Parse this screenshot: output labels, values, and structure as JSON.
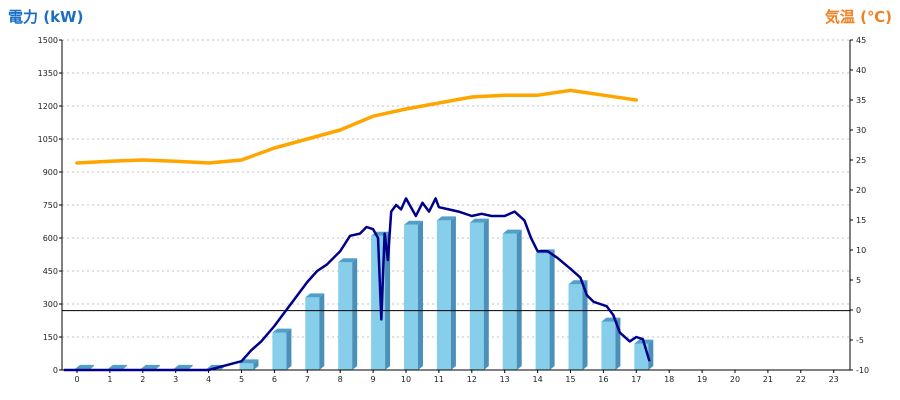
{
  "chart_data": {
    "type": "bar",
    "ylabel_left": "電力 (kW)",
    "ylabel_right": "気温 (℃)",
    "x_ticks": [
      "0",
      "1",
      "2",
      "3",
      "4",
      "5",
      "6",
      "7",
      "8",
      "9",
      "10",
      "11",
      "12",
      "13",
      "14",
      "15",
      "16",
      "17",
      "18",
      "19",
      "20",
      "21",
      "22",
      "23"
    ],
    "y_left_ticks": [
      "0",
      "150",
      "300",
      "450",
      "600",
      "750",
      "900",
      "1050",
      "1200",
      "1350",
      "1500"
    ],
    "y_right_ticks": [
      "-10",
      "-5",
      "0",
      "5",
      "10",
      "15",
      "20",
      "25",
      "30",
      "35",
      "40",
      "45"
    ],
    "ylim_left": [
      0,
      1500
    ],
    "ylim_right": [
      -10,
      45
    ],
    "grid": true,
    "colors": {
      "bars": "#87ceeb",
      "bar_side": "#4a90b8",
      "bar_top": "#4f9fc8",
      "power_line": "#00008b",
      "temp_line": "#ffa500",
      "grid": "#c0c0c0",
      "left_label": "#1a6fc4",
      "right_label": "#f08020"
    },
    "bar_series": {
      "hours": [
        0,
        1,
        2,
        3,
        4,
        5,
        6,
        7,
        8,
        9,
        10,
        11,
        12,
        13,
        14,
        15,
        16,
        17
      ],
      "values": [
        5,
        5,
        5,
        5,
        5,
        30,
        170,
        330,
        490,
        610,
        660,
        680,
        670,
        620,
        530,
        390,
        220,
        120
      ]
    },
    "temperature_series": {
      "hours": [
        0,
        1,
        2,
        3,
        4,
        5,
        6,
        7,
        8,
        9,
        10,
        11,
        12,
        13,
        14,
        15,
        16,
        17
      ],
      "values": [
        24.5,
        24.8,
        25,
        24.8,
        24.5,
        25,
        27,
        28.5,
        30,
        32.3,
        33.5,
        34.5,
        35.5,
        35.8,
        35.8,
        36.6,
        35.8,
        35
      ]
    },
    "power_series": {
      "x": [
        -0.4,
        0,
        1,
        2,
        3,
        4,
        4.5,
        5,
        5.3,
        5.6,
        6,
        6.3,
        6.6,
        7,
        7.3,
        7.6,
        8,
        8.3,
        8.6,
        8.8,
        9,
        9.15,
        9.25,
        9.35,
        9.45,
        9.55,
        9.7,
        9.85,
        10,
        10.3,
        10.5,
        10.7,
        10.9,
        11,
        11.3,
        11.6,
        12,
        12.3,
        12.6,
        13,
        13.3,
        13.6,
        13.8,
        14,
        14.3,
        14.6,
        15,
        15.3,
        15.5,
        15.7,
        15.9,
        16.1,
        16.3,
        16.5,
        16.8,
        17,
        17.2,
        17.4
      ],
      "values": [
        0,
        0,
        0,
        0,
        0,
        0,
        20,
        40,
        90,
        130,
        200,
        260,
        320,
        400,
        450,
        480,
        540,
        610,
        620,
        650,
        640,
        600,
        230,
        620,
        500,
        720,
        750,
        730,
        780,
        700,
        760,
        720,
        780,
        740,
        730,
        720,
        700,
        710,
        700,
        700,
        720,
        680,
        600,
        540,
        540,
        510,
        460,
        420,
        340,
        310,
        300,
        290,
        250,
        170,
        130,
        150,
        140,
        40
      ]
    },
    "reference_line_left_value": 270
  }
}
